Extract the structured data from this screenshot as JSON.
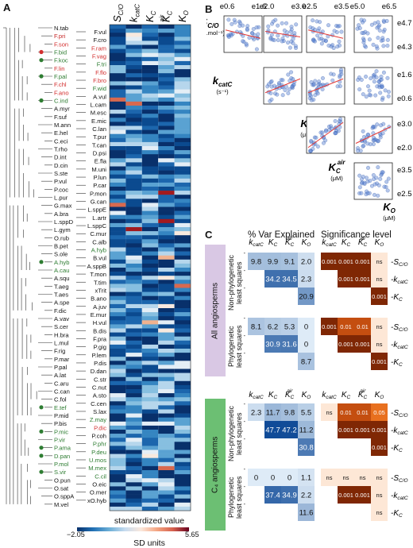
{
  "panels": {
    "a": "A",
    "b": "B",
    "c": "C"
  },
  "panel_a": {
    "columns": [
      "S_C/O",
      "k_catC",
      "K_C",
      "K_C^air",
      "K_O"
    ],
    "colorbar": {
      "title": "standardized value",
      "unit": "SD units",
      "min": "−2.05",
      "max": "5.65"
    },
    "taxa_left": [
      "N.tab",
      "F.pri",
      "F.son",
      "F.bid",
      "F.koc",
      "F.lin",
      "F.pal",
      "F.chl",
      "F.ano",
      "C.ind",
      "A.myr",
      "F.suf",
      "M.ann",
      "E.hel",
      "C.eci",
      "T.rho",
      "D.int",
      "D.cin",
      "S.ste",
      "P.vul",
      "P.coc",
      "L.pur",
      "G.max",
      "A.bra",
      "L.sppD",
      "L.gym",
      "O.rub",
      "B.pet",
      "S.ole",
      "A.hyb",
      "A.cau",
      "A.squ",
      "T.aeg",
      "T.aes",
      "A.spe",
      "F.dic",
      "A.vav",
      "S.cer",
      "H.bra",
      "L.mul",
      "F.rig",
      "P.mar",
      "P.pal",
      "A.lat",
      "C.aru",
      "C.can",
      "C.fol",
      "E.tef",
      "P.mid",
      "P.bis",
      "P.mic",
      "P.vir",
      "P.ama",
      "D.pan",
      "P.mol",
      "S.vir",
      "O.pun",
      "O.sat",
      "O.sppA",
      "M.vel"
    ],
    "taxa_right": [
      "F.vul",
      "F.cro",
      "F.ram",
      "F.vag",
      "F.tri",
      "F.flo",
      "F.bro",
      "F.wid",
      "A.vul",
      "L.cam",
      "M.esc",
      "E.mic",
      "C.lan",
      "T.pur",
      "T.can",
      "D.psi",
      "E.fla",
      "M.uni",
      "P.lun",
      "P.car",
      "P.mon",
      "G.can",
      "L.sppE",
      "L.artr",
      "L.sppC",
      "C.mur",
      "C.alb",
      "A.hyb",
      "B.vul",
      "A.sppB",
      "T.mon",
      "T.tim",
      "xTrit",
      "B.ano",
      "A.juv",
      "E.mur",
      "H.vul",
      "B.dis",
      "F.pra",
      "P.gig",
      "P.lem",
      "P.dis",
      "D.dan",
      "C.str",
      "C.nut",
      "A.sto",
      "C.cen",
      "S.lax",
      "Z.may",
      "P.dic",
      "P.coh",
      "P.phr",
      "P.deu",
      "U.mos",
      "M.mex",
      "C.cil",
      "O.eic",
      "O.mer",
      "xO.hyb"
    ]
  },
  "panel_b": {
    "row_labels": [
      {
        "main": "S",
        "sub": "C/O",
        "unit": "(mol.mol⁻¹)"
      },
      {
        "main": "k",
        "sub": "catC",
        "unit": "(s⁻¹)"
      },
      {
        "main": "K",
        "sub": "C",
        "unit": "(μM)"
      },
      {
        "main": "K",
        "sub": "C",
        "sup": "air",
        "unit": "(μM)"
      },
      {
        "main": "K",
        "sub": "O",
        "unit": "(μM)"
      }
    ],
    "top_ticks": [
      [
        "e0.6",
        "e1.6"
      ],
      [
        "e2.0",
        "e3.0"
      ],
      [
        "e2.5",
        "e3.5"
      ],
      [
        "e5.0",
        "e6.5"
      ]
    ],
    "right_ticks": [
      [
        "e4.7",
        "e4.3"
      ],
      [
        "e1.6",
        "e0.6"
      ],
      [
        "e3.0",
        "e2.0"
      ],
      [
        "e3.5",
        "e2.5"
      ]
    ]
  },
  "panel_c": {
    "titles": {
      "var": "% Var Explained",
      "sig": "Significance level"
    },
    "col_headers": [
      "k_catC",
      "K_C",
      "K_C^air",
      "K_O"
    ],
    "row_headers": [
      "S_C/O",
      "k_catC",
      "K_C"
    ],
    "groups": [
      {
        "name": "All angiosperms",
        "color": "#d9c8e4"
      },
      {
        "name": "C₄ angiosperms",
        "color": "#6cbf73"
      }
    ],
    "methods": [
      "Non-phylogenetic least squares",
      "Phylogenetic least squares"
    ],
    "blocks": [
      {
        "var": [
          [
            "9.8",
            "9.9",
            "9.1",
            "2.0"
          ],
          [
            "",
            "34.2",
            "34.5",
            "2.3"
          ],
          [
            "",
            "",
            "",
            "20.9"
          ]
        ],
        "sig": [
          [
            "0.001",
            "0.001",
            "0.001",
            "ns"
          ],
          [
            "",
            "0.001",
            "0.001",
            "ns"
          ],
          [
            "",
            "",
            "",
            "0.001"
          ]
        ]
      },
      {
        "var": [
          [
            "8.1",
            "6.2",
            "5.3",
            "0"
          ],
          [
            "",
            "30.9",
            "31.6",
            "0"
          ],
          [
            "",
            "",
            "",
            "8.7"
          ]
        ],
        "sig": [
          [
            "0.001",
            "0.01",
            "0.01",
            "ns"
          ],
          [
            "",
            "0.001",
            "0.001",
            "ns"
          ],
          [
            "",
            "",
            "",
            "0.001"
          ]
        ]
      },
      {
        "var": [
          [
            "2.3",
            "11.7",
            "9.8",
            "5.5"
          ],
          [
            "",
            "47.7",
            "47.2",
            "11.2"
          ],
          [
            "",
            "",
            "",
            "30.8"
          ]
        ],
        "sig": [
          [
            "ns",
            "0.01",
            "0.01",
            "0.05"
          ],
          [
            "",
            "0.001",
            "0.001",
            "0.001"
          ],
          [
            "",
            "",
            "",
            "0.001"
          ]
        ]
      },
      {
        "var": [
          [
            "0",
            "0",
            "0",
            "1.1"
          ],
          [
            "",
            "37.4",
            "34.9",
            "2.2"
          ],
          [
            "",
            "",
            "",
            "11.6"
          ]
        ],
        "sig": [
          [
            "ns",
            "ns",
            "ns",
            "ns"
          ],
          [
            "",
            "0.001",
            "0.001",
            "ns"
          ],
          [
            "",
            "",
            "",
            "ns"
          ]
        ]
      }
    ]
  }
}
